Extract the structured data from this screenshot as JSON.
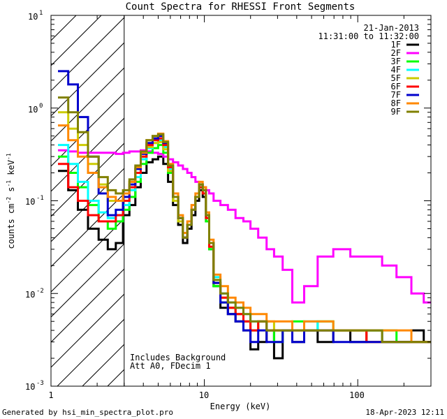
{
  "chart_data": {
    "type": "line",
    "title": "Count Spectra for RHESSI Front Segments",
    "xlabel": "Energy (keV)",
    "ylabel_parts": [
      "counts cm",
      "-2",
      " s",
      "-1",
      " keV",
      "-1"
    ],
    "xscale": "log",
    "yscale": "log",
    "xlim": [
      1,
      300
    ],
    "ylim": [
      0.001,
      10
    ],
    "x_ticks": [
      {
        "value": 10,
        "label": "10"
      },
      {
        "value": 100,
        "label": "100"
      }
    ],
    "x_tick_one": {
      "value": 1,
      "label": "1"
    },
    "y_ticks": [
      {
        "value": 10,
        "base": "10",
        "exp": "1"
      },
      {
        "value": 1,
        "base": "10",
        "exp": "0"
      },
      {
        "value": 0.1,
        "base": "10",
        "exp": "-1"
      },
      {
        "value": 0.01,
        "base": "10",
        "exp": "-2"
      },
      {
        "value": 0.001,
        "base": "10",
        "exp": "-3"
      }
    ],
    "hatched_region": {
      "x_from": 1,
      "x_to": 3
    },
    "date": "21-Jan-2013",
    "time_range": "11:31:00 to 11:32:00",
    "annotations": [
      "Includes Background",
      "Att A0, FDecim 1"
    ],
    "series": [
      {
        "name": "1F",
        "color": "#000000",
        "x": [
          1.2,
          1.4,
          1.6,
          1.9,
          2.2,
          2.5,
          2.8,
          3.1,
          3.4,
          3.7,
          4.0,
          4.4,
          4.8,
          5.2,
          5.6,
          6.0,
          6.5,
          7.0,
          7.5,
          8.0,
          8.5,
          9.0,
          9.5,
          10.0,
          10.5,
          11.0,
          12.0,
          13.5,
          15,
          17,
          19,
          21,
          24,
          27,
          30,
          35,
          40,
          50,
          60,
          80,
          100,
          130,
          160,
          200,
          250,
          290
        ],
        "y": [
          0.21,
          0.13,
          0.08,
          0.05,
          0.038,
          0.03,
          0.035,
          0.07,
          0.09,
          0.14,
          0.2,
          0.26,
          0.28,
          0.3,
          0.25,
          0.16,
          0.09,
          0.055,
          0.035,
          0.05,
          0.07,
          0.1,
          0.13,
          0.11,
          0.06,
          0.03,
          0.012,
          0.007,
          0.006,
          0.005,
          0.004,
          0.0025,
          0.003,
          0.004,
          0.002,
          0.004,
          0.003,
          0.004,
          0.003,
          0.004,
          0.003,
          0.004,
          0.003,
          0.003,
          0.004,
          0.003
        ]
      },
      {
        "name": "2F",
        "color": "#ff00ff",
        "x": [
          1.2,
          1.4,
          1.6,
          1.9,
          2.2,
          2.5,
          2.8,
          3.1,
          3.4,
          3.7,
          4.0,
          4.4,
          4.8,
          5.2,
          5.6,
          6.0,
          6.5,
          7.0,
          7.5,
          8.0,
          8.5,
          9.0,
          9.5,
          10.0,
          10.5,
          11.0,
          12.0,
          13.5,
          15,
          17,
          19,
          21,
          24,
          27,
          30,
          35,
          40,
          50,
          60,
          80,
          100,
          130,
          160,
          200,
          250,
          290
        ],
        "y": [
          0.35,
          0.34,
          0.33,
          0.33,
          0.33,
          0.33,
          0.32,
          0.33,
          0.34,
          0.34,
          0.35,
          0.34,
          0.33,
          0.32,
          0.3,
          0.28,
          0.26,
          0.24,
          0.22,
          0.2,
          0.18,
          0.16,
          0.15,
          0.14,
          0.13,
          0.12,
          0.1,
          0.09,
          0.08,
          0.065,
          0.06,
          0.05,
          0.04,
          0.03,
          0.025,
          0.018,
          0.008,
          0.012,
          0.025,
          0.03,
          0.025,
          0.025,
          0.02,
          0.015,
          0.01,
          0.008
        ]
      },
      {
        "name": "3F",
        "color": "#00ff00",
        "x": [
          1.2,
          1.4,
          1.6,
          1.9,
          2.2,
          2.5,
          2.8,
          3.1,
          3.4,
          3.7,
          4.0,
          4.4,
          4.8,
          5.2,
          5.6,
          6.0,
          6.5,
          7.0,
          7.5,
          8.0,
          8.5,
          9.0,
          9.5,
          10.0,
          10.5,
          11.0,
          12.0,
          13.5,
          15,
          17,
          19,
          21,
          24,
          27,
          30,
          35,
          40,
          50,
          60,
          80,
          100,
          130,
          160,
          200,
          250,
          290
        ],
        "y": [
          0.3,
          0.2,
          0.14,
          0.09,
          0.06,
          0.05,
          0.06,
          0.08,
          0.11,
          0.16,
          0.25,
          0.33,
          0.37,
          0.4,
          0.33,
          0.2,
          0.1,
          0.06,
          0.04,
          0.055,
          0.08,
          0.11,
          0.14,
          0.12,
          0.06,
          0.03,
          0.012,
          0.008,
          0.007,
          0.006,
          0.005,
          0.004,
          0.005,
          0.004,
          0.003,
          0.004,
          0.005,
          0.004,
          0.005,
          0.004,
          0.004,
          0.004,
          0.004,
          0.003,
          0.003,
          0.003
        ]
      },
      {
        "name": "4F",
        "color": "#00ffff",
        "x": [
          1.2,
          1.4,
          1.6,
          1.9,
          2.2,
          2.5,
          2.8,
          3.1,
          3.4,
          3.7,
          4.0,
          4.4,
          4.8,
          5.2,
          5.6,
          6.0,
          6.5,
          7.0,
          7.5,
          8.0,
          8.5,
          9.0,
          9.5,
          10.0,
          10.5,
          11.0,
          12.0,
          13.5,
          15,
          17,
          19,
          21,
          24,
          27,
          30,
          35,
          40,
          50,
          60,
          80,
          100,
          130,
          160,
          200,
          250,
          290
        ],
        "y": [
          0.4,
          0.25,
          0.16,
          0.1,
          0.075,
          0.065,
          0.07,
          0.09,
          0.13,
          0.18,
          0.28,
          0.37,
          0.42,
          0.45,
          0.38,
          0.22,
          0.11,
          0.065,
          0.04,
          0.055,
          0.08,
          0.11,
          0.15,
          0.13,
          0.07,
          0.035,
          0.015,
          0.01,
          0.008,
          0.007,
          0.006,
          0.005,
          0.005,
          0.004,
          0.004,
          0.004,
          0.004,
          0.005,
          0.004,
          0.004,
          0.004,
          0.004,
          0.003,
          0.003,
          0.003,
          0.003
        ]
      },
      {
        "name": "5F",
        "color": "#cccc00",
        "x": [
          1.2,
          1.4,
          1.6,
          1.9,
          2.2,
          2.5,
          2.8,
          3.1,
          3.4,
          3.7,
          4.0,
          4.4,
          4.8,
          5.2,
          5.6,
          6.0,
          6.5,
          7.0,
          7.5,
          8.0,
          8.5,
          9.0,
          9.5,
          10.0,
          10.5,
          11.0,
          12.0,
          13.5,
          15,
          17,
          19,
          21,
          24,
          27,
          30,
          35,
          40,
          50,
          60,
          80,
          100,
          130,
          160,
          200,
          250,
          290
        ],
        "y": [
          0.9,
          0.6,
          0.4,
          0.25,
          0.15,
          0.1,
          0.1,
          0.12,
          0.16,
          0.22,
          0.3,
          0.38,
          0.42,
          0.43,
          0.36,
          0.21,
          0.1,
          0.06,
          0.04,
          0.055,
          0.08,
          0.11,
          0.14,
          0.12,
          0.065,
          0.032,
          0.013,
          0.009,
          0.007,
          0.006,
          0.005,
          0.004,
          0.005,
          0.005,
          0.004,
          0.004,
          0.004,
          0.004,
          0.004,
          0.004,
          0.004,
          0.003,
          0.003,
          0.003,
          0.003,
          0.003
        ]
      },
      {
        "name": "6F",
        "color": "#ff0000",
        "x": [
          1.2,
          1.4,
          1.6,
          1.9,
          2.2,
          2.5,
          2.8,
          3.1,
          3.4,
          3.7,
          4.0,
          4.4,
          4.8,
          5.2,
          5.6,
          6.0,
          6.5,
          7.0,
          7.5,
          8.0,
          8.5,
          9.0,
          9.5,
          10.0,
          10.5,
          11.0,
          12.0,
          13.5,
          15,
          17,
          19,
          21,
          24,
          27,
          30,
          35,
          40,
          50,
          60,
          80,
          100,
          130,
          160,
          200,
          250,
          290
        ],
        "y": [
          0.25,
          0.14,
          0.1,
          0.07,
          0.06,
          0.06,
          0.07,
          0.1,
          0.14,
          0.2,
          0.3,
          0.4,
          0.45,
          0.47,
          0.4,
          0.23,
          0.11,
          0.065,
          0.04,
          0.055,
          0.08,
          0.11,
          0.14,
          0.12,
          0.065,
          0.032,
          0.013,
          0.009,
          0.007,
          0.006,
          0.005,
          0.004,
          0.005,
          0.004,
          0.004,
          0.004,
          0.004,
          0.004,
          0.004,
          0.004,
          0.004,
          0.003,
          0.003,
          0.003,
          0.003,
          0.003
        ]
      },
      {
        "name": "7F",
        "color": "#0000cc",
        "x": [
          1.2,
          1.4,
          1.6,
          1.9,
          2.2,
          2.5,
          2.8,
          3.1,
          3.4,
          3.7,
          4.0,
          4.4,
          4.8,
          5.2,
          5.6,
          6.0,
          6.5,
          7.0,
          7.5,
          8.0,
          8.5,
          9.0,
          9.5,
          10.0,
          10.5,
          11.0,
          12.0,
          13.5,
          15,
          17,
          19,
          21,
          24,
          27,
          30,
          35,
          40,
          50,
          60,
          80,
          100,
          130,
          160,
          200,
          250,
          290
        ],
        "y": [
          2.5,
          1.8,
          0.8,
          0.3,
          0.12,
          0.07,
          0.08,
          0.11,
          0.15,
          0.22,
          0.32,
          0.42,
          0.47,
          0.5,
          0.42,
          0.24,
          0.11,
          0.065,
          0.04,
          0.055,
          0.08,
          0.11,
          0.15,
          0.13,
          0.07,
          0.035,
          0.013,
          0.008,
          0.006,
          0.005,
          0.004,
          0.003,
          0.004,
          0.003,
          0.003,
          0.004,
          0.003,
          0.004,
          0.004,
          0.003,
          0.003,
          0.003,
          0.003,
          0.003,
          0.003,
          0.003
        ]
      },
      {
        "name": "8F",
        "color": "#ff8800",
        "x": [
          1.2,
          1.4,
          1.6,
          1.9,
          2.2,
          2.5,
          2.8,
          3.1,
          3.4,
          3.7,
          4.0,
          4.4,
          4.8,
          5.2,
          5.6,
          6.0,
          6.5,
          7.0,
          7.5,
          8.0,
          8.5,
          9.0,
          9.5,
          10.0,
          10.5,
          11.0,
          12.0,
          13.5,
          15,
          17,
          19,
          21,
          24,
          27,
          30,
          35,
          40,
          50,
          60,
          80,
          100,
          130,
          160,
          200,
          250,
          290
        ],
        "y": [
          0.65,
          0.45,
          0.3,
          0.2,
          0.14,
          0.11,
          0.1,
          0.12,
          0.16,
          0.23,
          0.33,
          0.45,
          0.5,
          0.53,
          0.44,
          0.25,
          0.12,
          0.07,
          0.045,
          0.06,
          0.09,
          0.12,
          0.16,
          0.14,
          0.075,
          0.038,
          0.016,
          0.012,
          0.009,
          0.008,
          0.007,
          0.006,
          0.006,
          0.005,
          0.005,
          0.005,
          0.004,
          0.005,
          0.005,
          0.004,
          0.004,
          0.004,
          0.004,
          0.004,
          0.003,
          0.003
        ]
      },
      {
        "name": "9F",
        "color": "#808000",
        "x": [
          1.2,
          1.4,
          1.6,
          1.9,
          2.2,
          2.5,
          2.8,
          3.1,
          3.4,
          3.7,
          4.0,
          4.4,
          4.8,
          5.2,
          5.6,
          6.0,
          6.5,
          7.0,
          7.5,
          8.0,
          8.5,
          9.0,
          9.5,
          10.0,
          10.5,
          11.0,
          12.0,
          13.5,
          15,
          17,
          19,
          21,
          24,
          27,
          30,
          35,
          40,
          50,
          60,
          80,
          100,
          130,
          160,
          200,
          250,
          290
        ],
        "y": [
          1.3,
          0.9,
          0.55,
          0.3,
          0.18,
          0.13,
          0.12,
          0.13,
          0.17,
          0.24,
          0.34,
          0.45,
          0.5,
          0.52,
          0.43,
          0.24,
          0.11,
          0.065,
          0.04,
          0.055,
          0.08,
          0.11,
          0.15,
          0.13,
          0.07,
          0.035,
          0.014,
          0.01,
          0.008,
          0.007,
          0.006,
          0.005,
          0.005,
          0.004,
          0.004,
          0.004,
          0.004,
          0.004,
          0.004,
          0.004,
          0.004,
          0.004,
          0.003,
          0.003,
          0.003,
          0.003
        ]
      }
    ]
  },
  "footer": {
    "generated_by": "Generated by hsi_min_spectra_plot.pro",
    "timestamp": "18-Apr-2023 12:11"
  }
}
